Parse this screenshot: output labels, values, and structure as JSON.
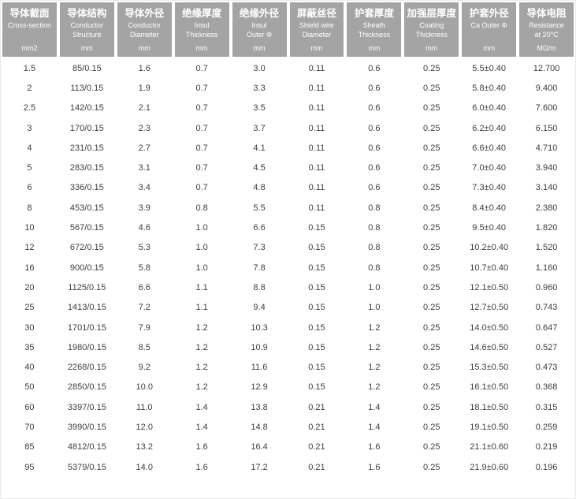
{
  "colors": {
    "header_bg": "#a4a4a4",
    "header_text": "#ffffff",
    "body_text": "#3d3d3d",
    "page_bg": "#ffffff"
  },
  "table": {
    "columns": [
      {
        "key": "cross-section",
        "zh": "导体截面",
        "en": [
          "Cross-section"
        ],
        "unit": "mm2"
      },
      {
        "key": "conductor-structure",
        "zh": "导体结构",
        "en": [
          "Conductor",
          "Structure"
        ],
        "unit": "mm"
      },
      {
        "key": "conductor-diameter",
        "zh": "导体外径",
        "en": [
          "Conductor",
          "Diameter"
        ],
        "unit": "mm"
      },
      {
        "key": "insul-thickness",
        "zh": "绝缘厚度",
        "en": [
          "Insul",
          "Thickness"
        ],
        "unit": "mm"
      },
      {
        "key": "insul-outer",
        "zh": "绝缘外径",
        "en": [
          "Insul",
          "Outer Φ"
        ],
        "unit": "mm"
      },
      {
        "key": "shield-wire-diameter",
        "zh": "屏蔽丝径",
        "en": [
          "Shield wire",
          "Diameter"
        ],
        "unit": "mm"
      },
      {
        "key": "sheath-thickness",
        "zh": "护套厚度",
        "en": [
          "Sheath",
          "Thickness"
        ],
        "unit": "mm"
      },
      {
        "key": "coating-thickness",
        "zh": "加强层厚度",
        "en": [
          "Coating",
          "Thickness"
        ],
        "unit": "mm"
      },
      {
        "key": "sheath-outer",
        "zh": "护套外径",
        "en": [
          "Ca Outer Φ"
        ],
        "unit": "mm"
      },
      {
        "key": "resistance",
        "zh": "导体电阻",
        "en": [
          "Resistance",
          "at 20°C"
        ],
        "unit": "MΩ/m"
      }
    ],
    "rows": [
      [
        "1.5",
        "85/0.15",
        "1.6",
        "0.7",
        "3.0",
        "0.11",
        "0.6",
        "0.25",
        "5.5±0.40",
        "12.700"
      ],
      [
        "2",
        "113/0.15",
        "1.9",
        "0.7",
        "3.3",
        "0.11",
        "0.6",
        "0.25",
        "5.8±0.40",
        "9.400"
      ],
      [
        "2.5",
        "142/0.15",
        "2.1",
        "0.7",
        "3.5",
        "0.11",
        "0.6",
        "0.25",
        "6.0±0.40",
        "7.600"
      ],
      [
        "3",
        "170/0.15",
        "2.3",
        "0.7",
        "3.7",
        "0.11",
        "0.6",
        "0.25",
        "6.2±0.40",
        "6.150"
      ],
      [
        "4",
        "231/0.15",
        "2.7",
        "0.7",
        "4.1",
        "0.11",
        "0.6",
        "0.25",
        "6.6±0.40",
        "4.710"
      ],
      [
        "5",
        "283/0.15",
        "3.1",
        "0.7",
        "4.5",
        "0.11",
        "0.6",
        "0.25",
        "7.0±0.40",
        "3.940"
      ],
      [
        "6",
        "336/0.15",
        "3.4",
        "0.7",
        "4.8",
        "0.11",
        "0.6",
        "0.25",
        "7.3±0.40",
        "3.140"
      ],
      [
        "8",
        "453/0.15",
        "3.9",
        "0.8",
        "5.5",
        "0.11",
        "0.8",
        "0.25",
        "8.4±0.40",
        "2.380"
      ],
      [
        "10",
        "567/0.15",
        "4.6",
        "1.0",
        "6.6",
        "0.15",
        "0.8",
        "0.25",
        "9.5±0.40",
        "1.820"
      ],
      [
        "12",
        "672/0.15",
        "5.3",
        "1.0",
        "7.3",
        "0.15",
        "0.8",
        "0.25",
        "10.2±0.40",
        "1.520"
      ],
      [
        "16",
        "900/0.15",
        "5.8",
        "1.0",
        "7.8",
        "0.15",
        "0.8",
        "0.25",
        "10.7±0.40",
        "1.160"
      ],
      [
        "20",
        "1125/0.15",
        "6.6",
        "1.1",
        "8.8",
        "0.15",
        "1.0",
        "0.25",
        "12.1±0.50",
        "0.960"
      ],
      [
        "25",
        "1413/0.15",
        "7.2",
        "1.1",
        "9.4",
        "0.15",
        "1.0",
        "0.25",
        "12.7±0.50",
        "0.743"
      ],
      [
        "30",
        "1701/0.15",
        "7.9",
        "1.2",
        "10.3",
        "0.15",
        "1.2",
        "0.25",
        "14.0±0.50",
        "0.647"
      ],
      [
        "35",
        "1980/0.15",
        "8.5",
        "1.2",
        "10.9",
        "0.15",
        "1.2",
        "0.25",
        "14.6±0.50",
        "0.527"
      ],
      [
        "40",
        "2268/0.15",
        "9.2",
        "1.2",
        "11.6",
        "0.15",
        "1.2",
        "0.25",
        "15.3±0.50",
        "0.473"
      ],
      [
        "50",
        "2850/0.15",
        "10.0",
        "1.2",
        "12.9",
        "0.15",
        "1.2",
        "0.25",
        "16.1±0.50",
        "0.368"
      ],
      [
        "60",
        "3397/0.15",
        "11.0",
        "1.4",
        "13.8",
        "0.21",
        "1.4",
        "0.25",
        "18.1±0.50",
        "0.315"
      ],
      [
        "70",
        "3990/0.15",
        "12.0",
        "1.4",
        "14.8",
        "0.21",
        "1.4",
        "0.25",
        "19.1±0.50",
        "0.259"
      ],
      [
        "85",
        "4812/0.15",
        "13.2",
        "1.6",
        "16.4",
        "0.21",
        "1.6",
        "0.25",
        "21.1±0.60",
        "0.219"
      ],
      [
        "95",
        "5379/0.15",
        "14.0",
        "1.6",
        "17.2",
        "0.21",
        "1.6",
        "0.25",
        "21.9±0.60",
        "0.196"
      ]
    ]
  }
}
